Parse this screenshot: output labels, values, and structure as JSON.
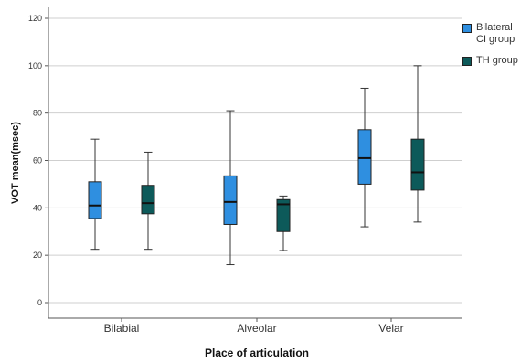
{
  "chart_data": {
    "type": "boxplot",
    "title": "",
    "xlabel": "Place of articulation",
    "ylabel": "VOT mean(msec)",
    "ylim": [
      -6,
      126
    ],
    "yticks": [
      0,
      20,
      40,
      60,
      80,
      100,
      120
    ],
    "grid": true,
    "legend_position": "right",
    "categories": [
      "Bilabial",
      "Alveolar",
      "Velar"
    ],
    "series": [
      {
        "name": "Bilateral CI group",
        "color": "#2f8fe0",
        "boxes": [
          {
            "min": 22.5,
            "q1": 35.5,
            "median": 41,
            "q3": 51,
            "max": 69
          },
          {
            "min": 16,
            "q1": 33,
            "median": 42.5,
            "q3": 53.5,
            "max": 81
          },
          {
            "min": 32,
            "q1": 50,
            "median": 61,
            "q3": 73,
            "max": 90.5
          }
        ]
      },
      {
        "name": "TH group",
        "color": "#0d5a5a",
        "boxes": [
          {
            "min": 22.5,
            "q1": 37.5,
            "median": 42,
            "q3": 49.5,
            "max": 63.5
          },
          {
            "min": 22,
            "q1": 30,
            "median": 41.5,
            "q3": 43.5,
            "max": 45
          },
          {
            "min": 34,
            "q1": 47.5,
            "median": 55,
            "q3": 69,
            "max": 100
          }
        ]
      }
    ],
    "legend": {
      "items": [
        {
          "label": "Bilateral CI group",
          "color": "#2f8fe0"
        },
        {
          "label": "TH group",
          "color": "#0d5a5a"
        }
      ]
    }
  }
}
